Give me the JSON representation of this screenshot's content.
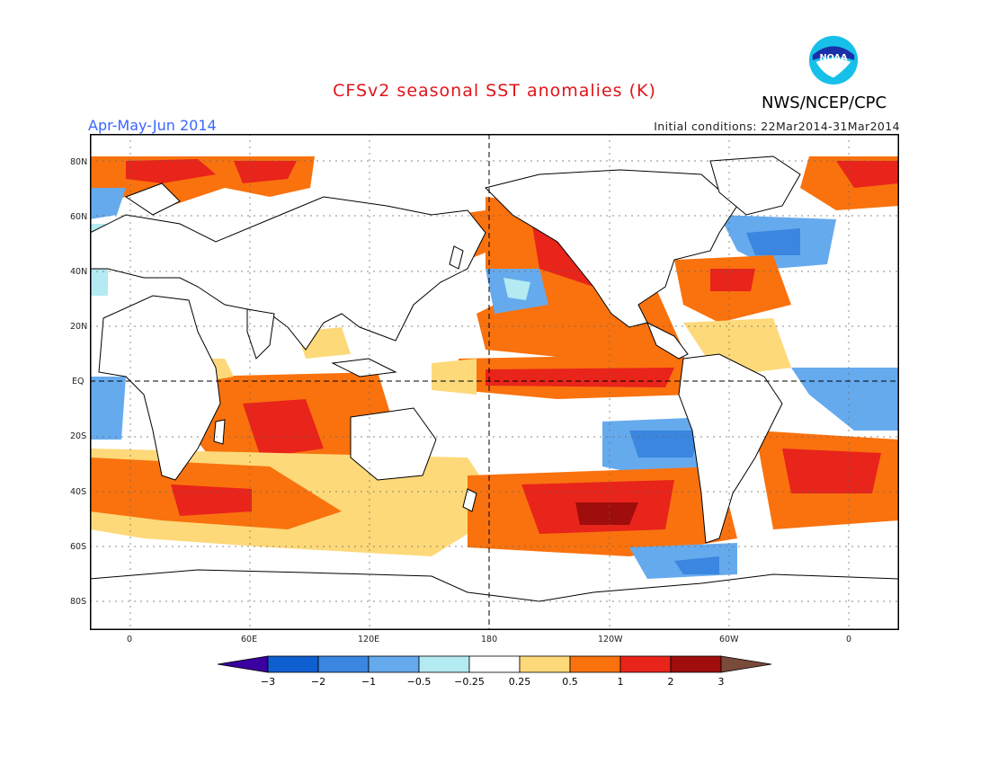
{
  "header": {
    "title": "CFSv2 seasonal SST anomalies (K)",
    "period": "Apr-May-Jun 2014",
    "initial_conditions": "Initial conditions: 22Mar2014-31Mar2014",
    "agency": "NWS/NCEP/CPC",
    "logo_text": "NOAA"
  },
  "axes": {
    "lat_labels": [
      "80N",
      "60N",
      "40N",
      "20N",
      "EQ",
      "20S",
      "40S",
      "60S",
      "80S"
    ],
    "lon_labels": [
      "0",
      "60E",
      "120E",
      "180",
      "120W",
      "60W",
      "0"
    ]
  },
  "legend": {
    "levels": [
      "-3",
      "-2",
      "-1",
      "-0.5",
      "-0.25",
      "0.25",
      "0.5",
      "1",
      "2",
      "3"
    ],
    "colors": [
      "#3a00a0",
      "#0f5fd0",
      "#3a86e0",
      "#66aaee",
      "#b4eaf2",
      "#ffffff",
      "#fdd97a",
      "#f9720e",
      "#e8241b",
      "#a00d0d",
      "#7a4a3a"
    ]
  },
  "colors": {
    "anomaly_warm_dark": "#a00d0d",
    "anomaly_warm": "#e8241b",
    "anomaly_orange": "#f9720e",
    "anomaly_yellow": "#fdd97a",
    "anomaly_cool_light": "#b4eaf2",
    "anomaly_cool": "#66aaee",
    "anomaly_cool_mid": "#3a86e0",
    "anomaly_cool_dark": "#0f5fd0"
  }
}
